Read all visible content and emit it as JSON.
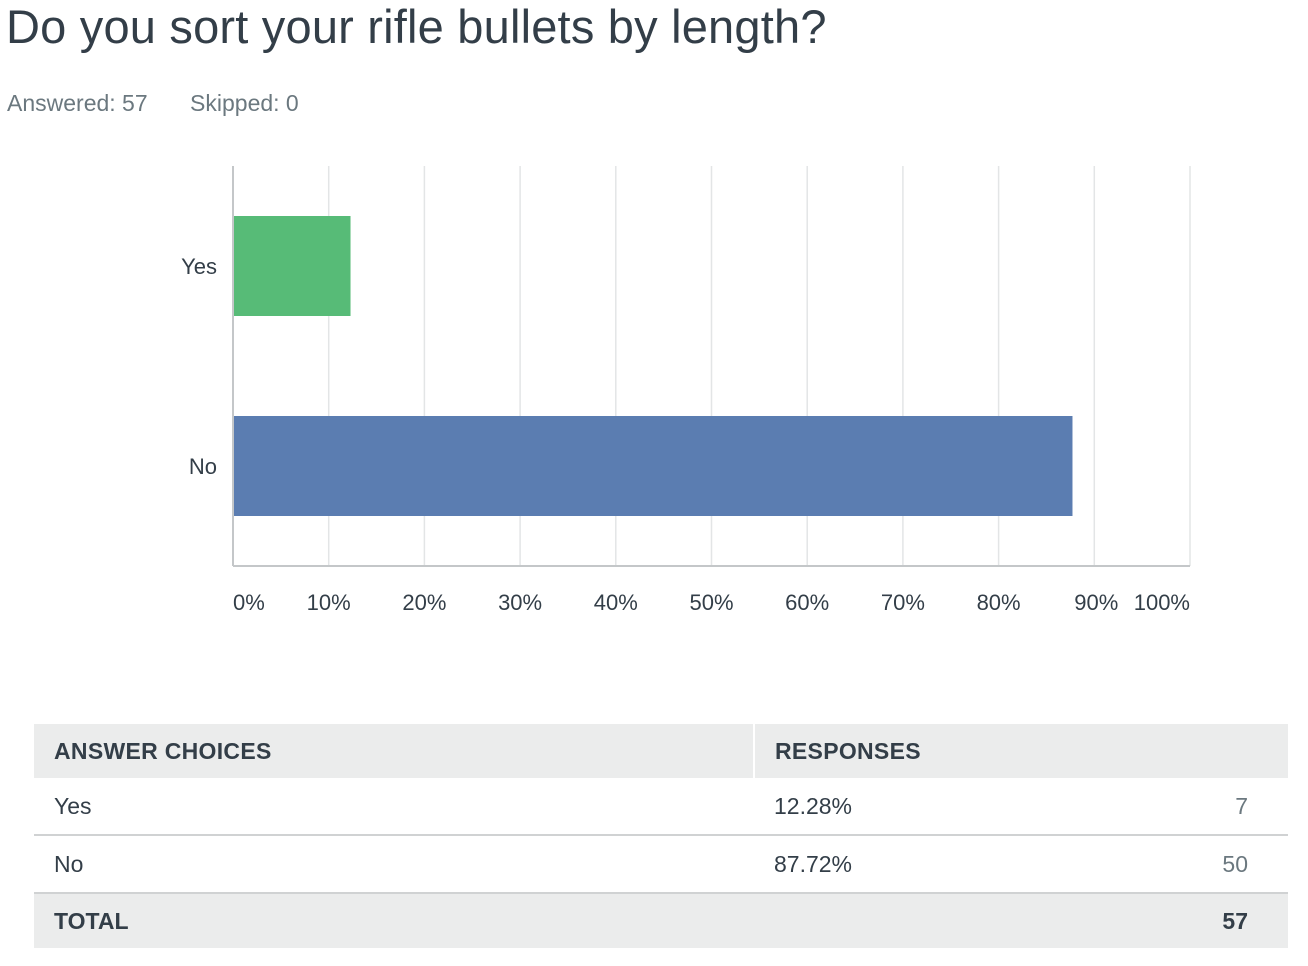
{
  "question": {
    "title": "Do you sort your rifle bullets by length?",
    "answered_label": "Answered: 57",
    "skipped_label": "Skipped: 0"
  },
  "chart_data": {
    "type": "bar",
    "orientation": "horizontal",
    "categories": [
      "Yes",
      "No"
    ],
    "values": [
      12.28,
      87.72
    ],
    "colors": [
      "#57bb77",
      "#5b7db1"
    ],
    "title": "",
    "xlabel": "",
    "ylabel": "",
    "xlim": [
      0,
      100
    ],
    "xticks": [
      "0%",
      "10%",
      "20%",
      "30%",
      "40%",
      "50%",
      "60%",
      "70%",
      "80%",
      "90%",
      "100%"
    ],
    "grid": true
  },
  "table": {
    "headers": [
      "ANSWER CHOICES",
      "RESPONSES"
    ],
    "rows": [
      {
        "choice": "Yes",
        "percent": "12.28%",
        "count": "7"
      },
      {
        "choice": "No",
        "percent": "87.72%",
        "count": "50"
      }
    ],
    "total": {
      "label": "TOTAL",
      "count": "57"
    }
  }
}
